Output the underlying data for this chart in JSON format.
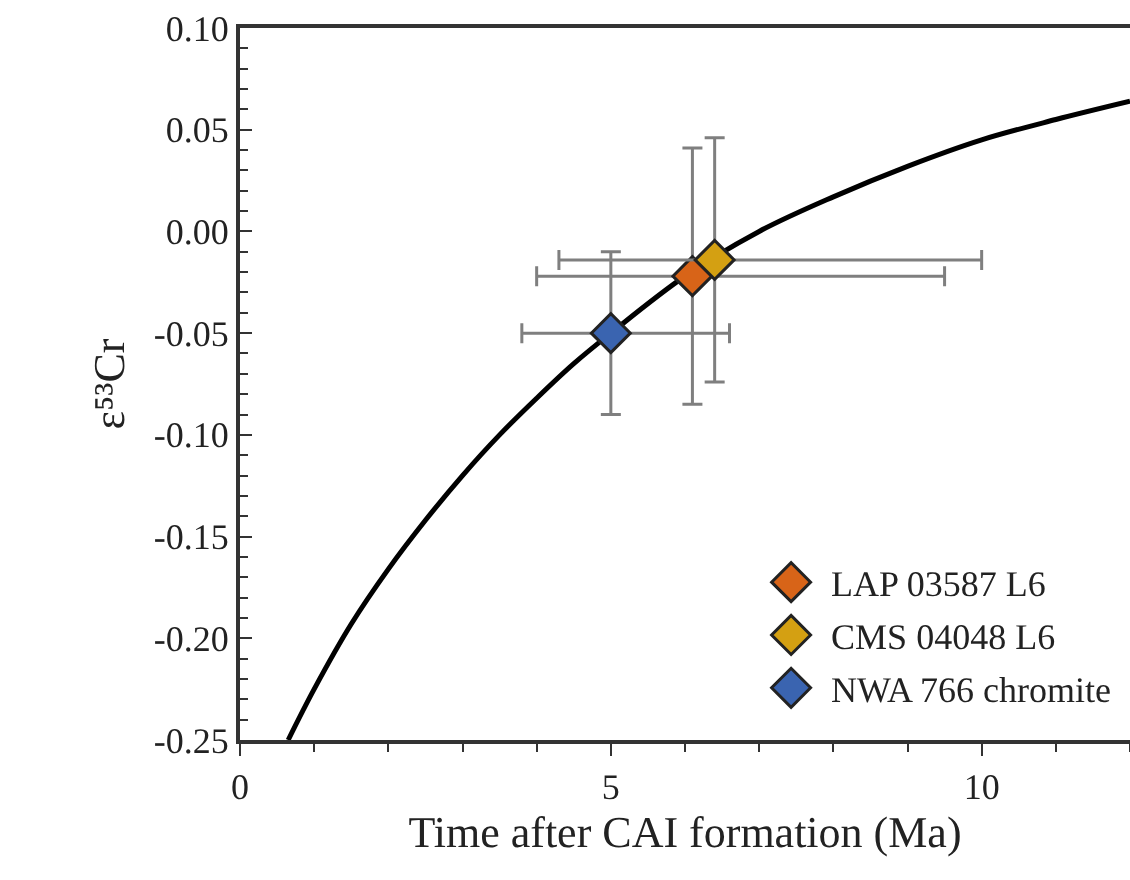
{
  "chart_data": {
    "type": "scatter",
    "xlabel": "Time after CAI formation (Ma)",
    "ylabel": "ε⁵³Cr",
    "xlim": [
      0,
      12
    ],
    "xticks": [
      0,
      5,
      10
    ],
    "ylim": [
      -0.25,
      0.1
    ],
    "yticks": [
      {
        "value": -0.25,
        "label": "-0.25"
      },
      {
        "value": -0.2,
        "label": "-0.20"
      },
      {
        "value": -0.15,
        "label": "-0.15"
      },
      {
        "value": -0.1,
        "label": "-0.10"
      },
      {
        "value": -0.05,
        "label": "-0.05"
      },
      {
        "value": 0,
        "label": "0.00"
      },
      {
        "value": 0.05,
        "label": "0.05"
      },
      {
        "value": 0.1,
        "label": "0.10"
      }
    ],
    "grid": false,
    "legend": "bottom right",
    "series": [
      {
        "type": "line",
        "marker": "none",
        "color": "#000000",
        "x": [
          0.65,
          1,
          1.5,
          2,
          2.5,
          3,
          3.5,
          4,
          4.5,
          5,
          6,
          7,
          8,
          9,
          10,
          11,
          12
        ],
        "values": [
          -0.25,
          -0.225,
          -0.193,
          -0.166,
          -0.142,
          -0.12,
          -0.1,
          -0.082,
          -0.065,
          -0.05,
          -0.022,
          0,
          0.017,
          0.032,
          0.045,
          0.055,
          0.064
        ]
      },
      {
        "name": "LAP 03587 L6",
        "marker": "diamond",
        "color": "#d86418",
        "x": [
          6.1
        ],
        "values": [
          -0.022
        ],
        "errors": [
          [
            -0.085,
            0.041
          ]
        ],
        "xerrors": [
          [
            4.0,
            9.5
          ]
        ]
      },
      {
        "name": "CMS 04048 L6",
        "marker": "diamond",
        "color": "#d4a012",
        "x": [
          6.4
        ],
        "values": [
          -0.014
        ],
        "errors": [
          [
            -0.074,
            0.046
          ]
        ],
        "xerrors": [
          [
            4.3,
            10.0
          ]
        ]
      },
      {
        "name": "NWA 766 chromite",
        "marker": "diamond",
        "color": "#3a64b0",
        "x": [
          5.0
        ],
        "values": [
          -0.05
        ],
        "errors": [
          [
            -0.09,
            -0.01
          ]
        ],
        "xerrors": [
          [
            3.8,
            6.6
          ]
        ]
      }
    ]
  }
}
